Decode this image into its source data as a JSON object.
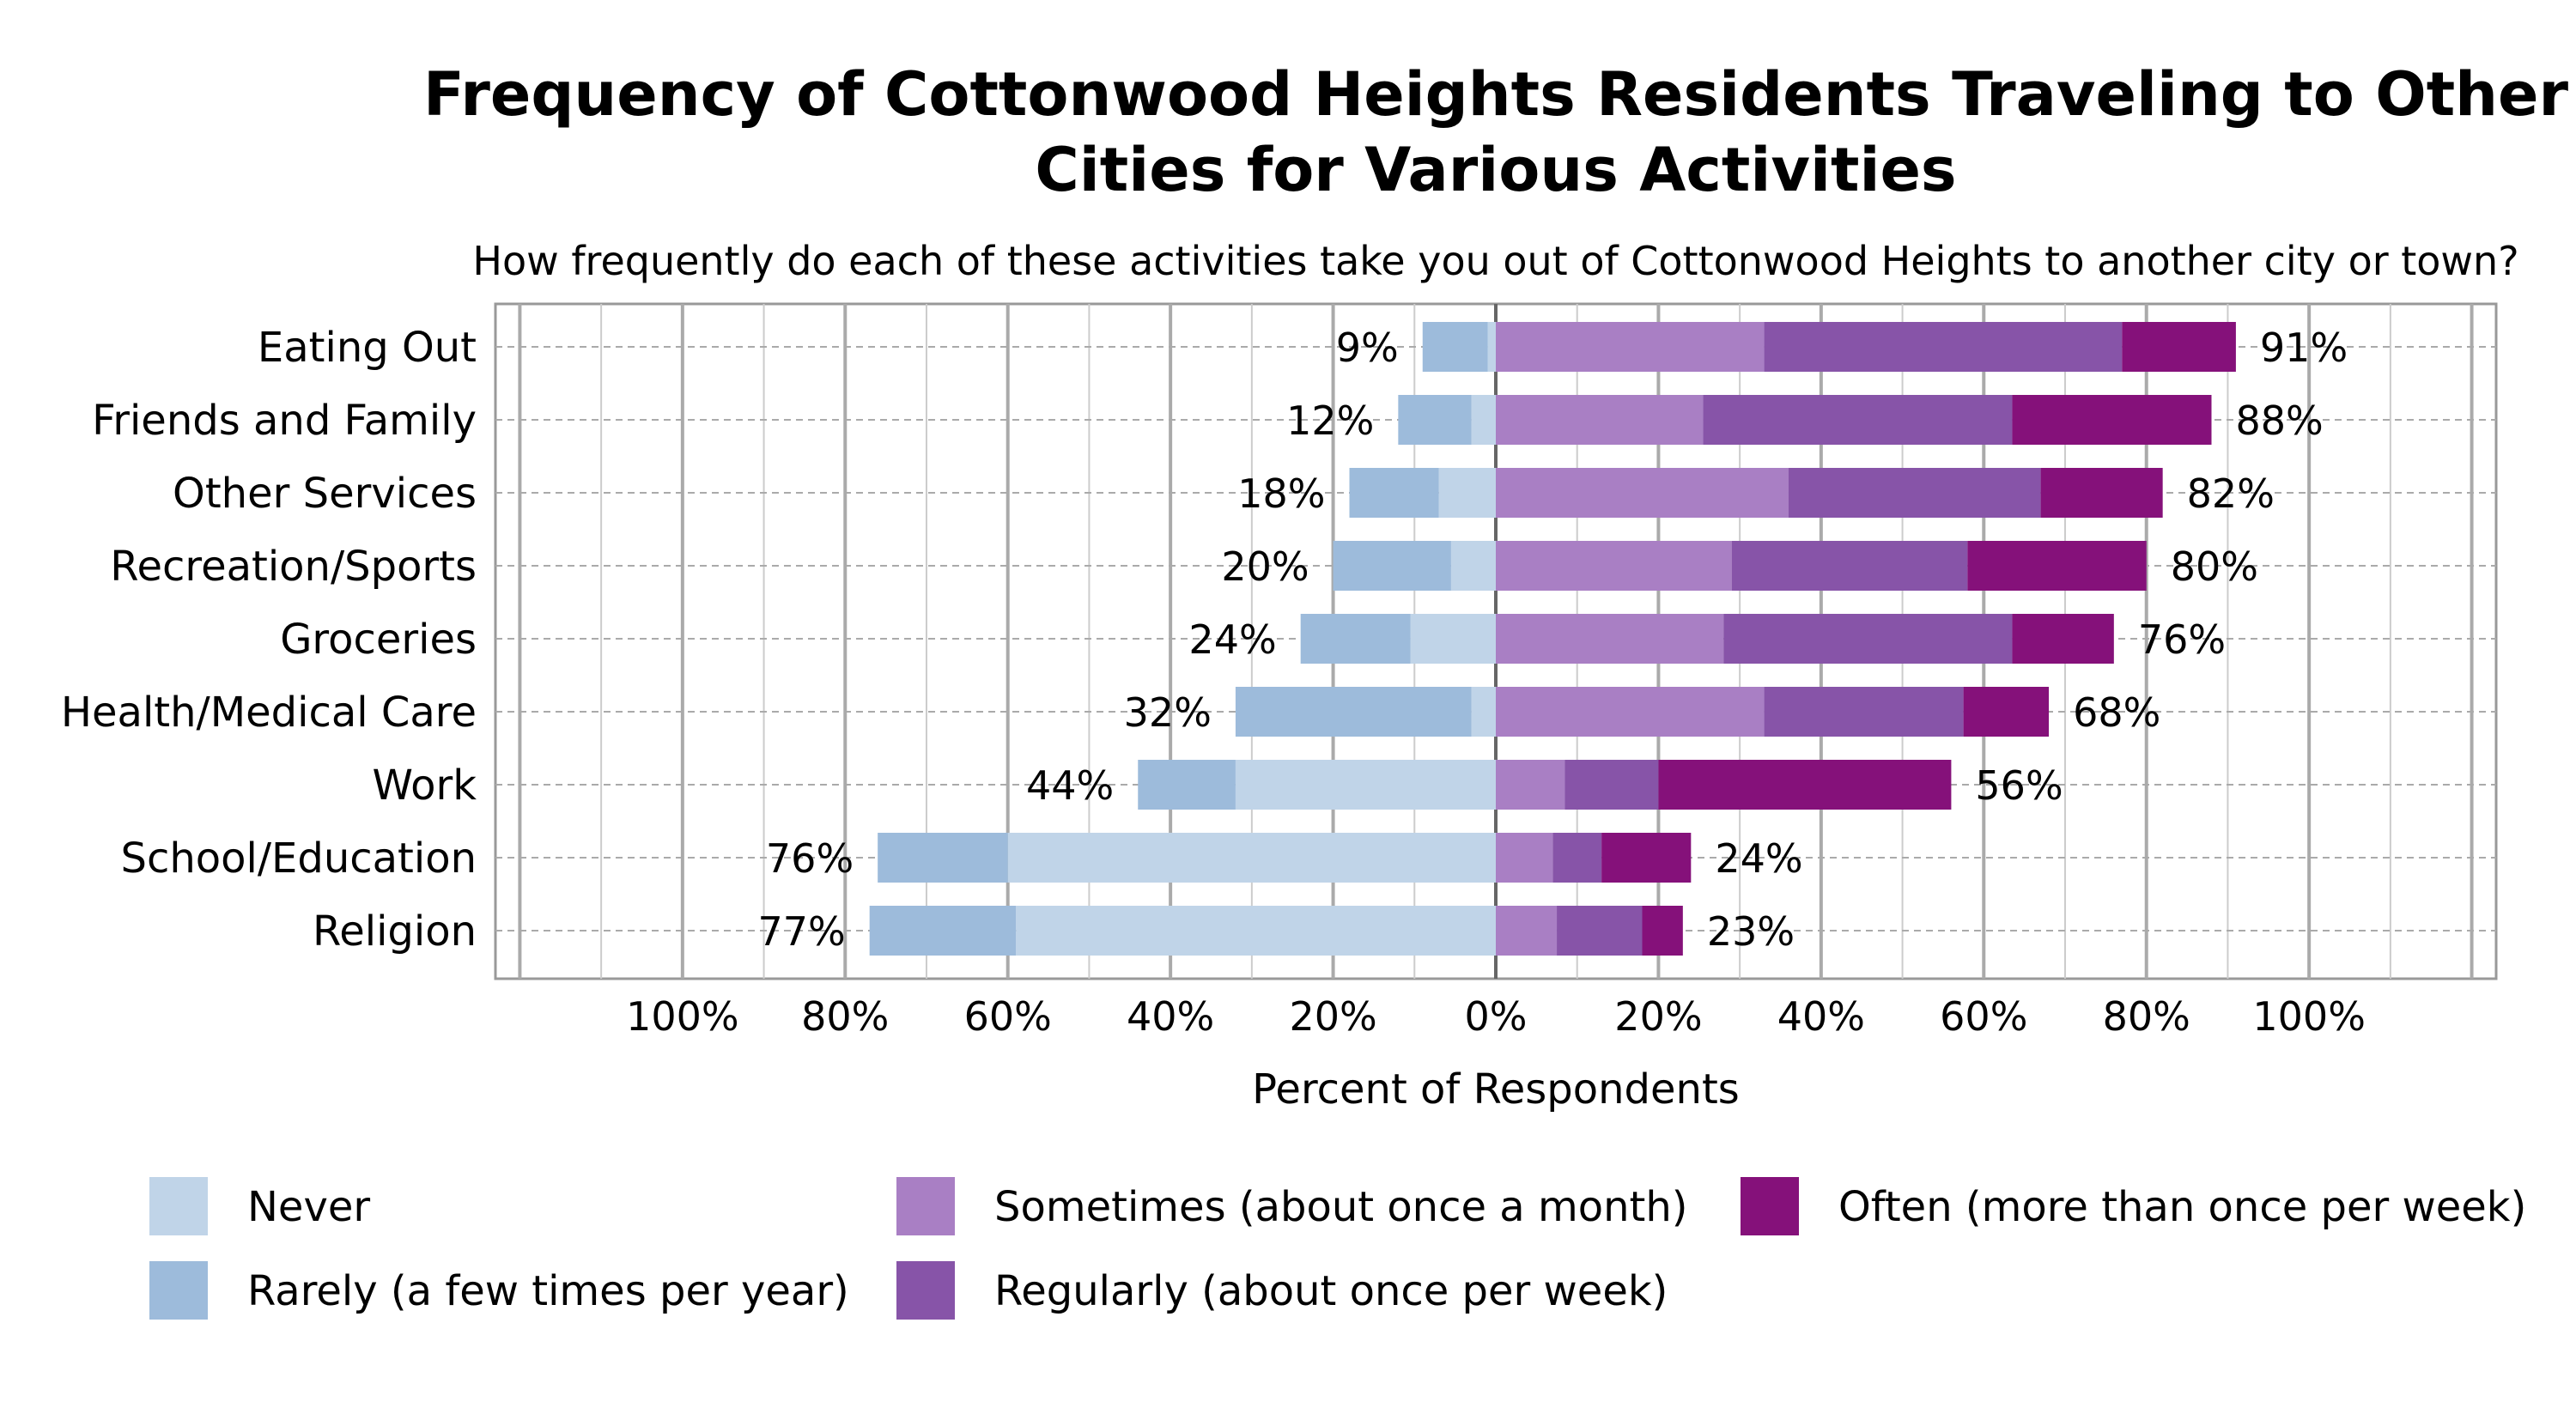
{
  "chart_data": {
    "type": "bar",
    "orientation": "horizontal-diverging-stacked",
    "title": "Frequency of Cottonwood Heights Residents Traveling to Other Cities for Various Activities",
    "title_lines": [
      "Frequency of Cottonwood Heights Residents Traveling to Other",
      "Cities for Various Activities"
    ],
    "subtitle": "How frequently do each of these activities take you out of Cottonwood Heights to another city or town?",
    "xlabel": "Percent of Respondents",
    "ylabel": "",
    "xlim": [
      -123,
      123
    ],
    "xticks": [
      -100,
      -80,
      -60,
      -40,
      -20,
      0,
      20,
      40,
      60,
      80,
      100
    ],
    "xtick_labels": [
      "100%",
      "80%",
      "60%",
      "40%",
      "20%",
      "0%",
      "20%",
      "40%",
      "60%",
      "80%",
      "100%"
    ],
    "grid": true,
    "legend_position": "bottom",
    "categories": [
      "Eating Out",
      "Friends and Family",
      "Other Services",
      "Recreation/Sports",
      "Groceries",
      "Health/Medical Care",
      "Work",
      "School/Education",
      "Religion"
    ],
    "series": [
      {
        "name": "Never",
        "side": "negative",
        "color": "#c0d4e8",
        "values": [
          1,
          3,
          7,
          5.5,
          10.5,
          3,
          32,
          60,
          59
        ]
      },
      {
        "name": "Rarely (a few times per year)",
        "side": "negative",
        "color": "#9dbbdb",
        "values": [
          8,
          9,
          11,
          14.5,
          13.5,
          29,
          12,
          16,
          18
        ]
      },
      {
        "name": "Sometimes (about once a month)",
        "side": "positive",
        "color": "#a97fc4",
        "values": [
          33,
          25.5,
          36,
          29,
          28,
          33,
          8.5,
          7,
          7.5
        ]
      },
      {
        "name": "Regularly (about once per week)",
        "side": "positive",
        "color": "#8754a8",
        "values": [
          44,
          38,
          31,
          29,
          35.5,
          24.5,
          11.5,
          6,
          10.5
        ]
      },
      {
        "name": "Often (more than once per week)",
        "side": "positive",
        "color": "#85117a",
        "values": [
          14,
          24.5,
          15,
          22,
          12.5,
          10.5,
          36,
          11,
          5
        ]
      }
    ],
    "negative_totals": [
      "9%",
      "12%",
      "18%",
      "20%",
      "24%",
      "32%",
      "44%",
      "76%",
      "77%"
    ],
    "positive_totals": [
      "91%",
      "88%",
      "82%",
      "80%",
      "76%",
      "68%",
      "56%",
      "24%",
      "23%"
    ]
  }
}
